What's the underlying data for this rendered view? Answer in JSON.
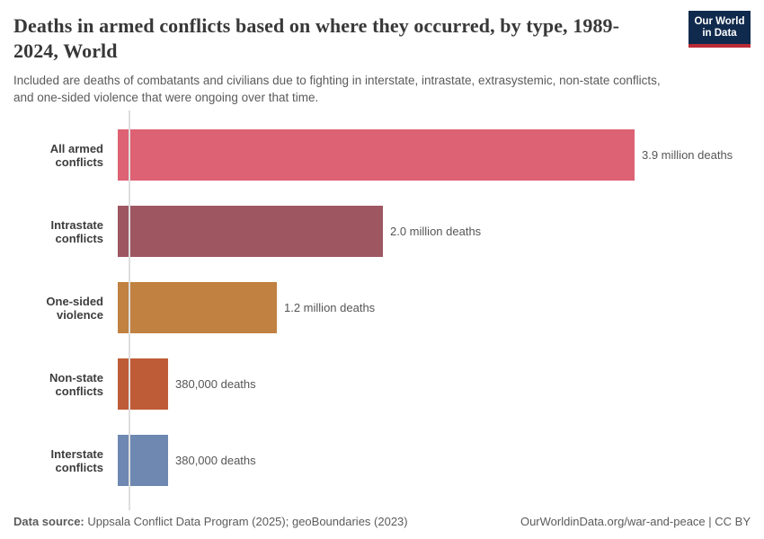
{
  "header": {
    "title": "Deaths in armed conflicts based on where they occurred, by type, 1989-2024, World",
    "subtitle": "Included are deaths of combatants and civilians due to fighting in interstate, intrastate, extrasystemic, non-state conflicts, and one-sided violence that were ongoing over that time.",
    "logo": {
      "line1": "Our World",
      "line2": "in Data",
      "bg_color": "#102a4d",
      "accent_color": "#bb2b35"
    }
  },
  "chart_data": {
    "type": "bar",
    "orientation": "horizontal",
    "title": "Deaths in armed conflicts based on where they occurred, by type, 1989-2024, World",
    "xlabel": "",
    "ylabel": "",
    "xlim": [
      0,
      3900000
    ],
    "grid": false,
    "legend": "none",
    "categories": [
      "All armed conflicts",
      "Intrastate conflicts",
      "One-sided violence",
      "Non-state conflicts",
      "Interstate conflicts"
    ],
    "values": [
      3900000,
      2000000,
      1200000,
      380000,
      380000
    ],
    "rows": [
      {
        "label": "All armed conflicts",
        "value": 3900000,
        "value_label": "3.9 million deaths",
        "color": "#dd6273"
      },
      {
        "label": "Intrastate conflicts",
        "value": 2000000,
        "value_label": "2.0 million deaths",
        "color": "#9e5661"
      },
      {
        "label": "One-sided violence",
        "value": 1200000,
        "value_label": "1.2 million deaths",
        "color": "#c18141"
      },
      {
        "label": "Non-state conflicts",
        "value": 380000,
        "value_label": "380,000 deaths",
        "color": "#bf5c38"
      },
      {
        "label": "Interstate conflicts",
        "value": 380000,
        "value_label": "380,000 deaths",
        "color": "#6e88b1"
      }
    ]
  },
  "footer": {
    "source_label": "Data source:",
    "source_text": " Uppsala Conflict Data Program (2025); geoBoundaries (2023)",
    "attribution": "OurWorldinData.org/war-and-peace | CC BY"
  }
}
